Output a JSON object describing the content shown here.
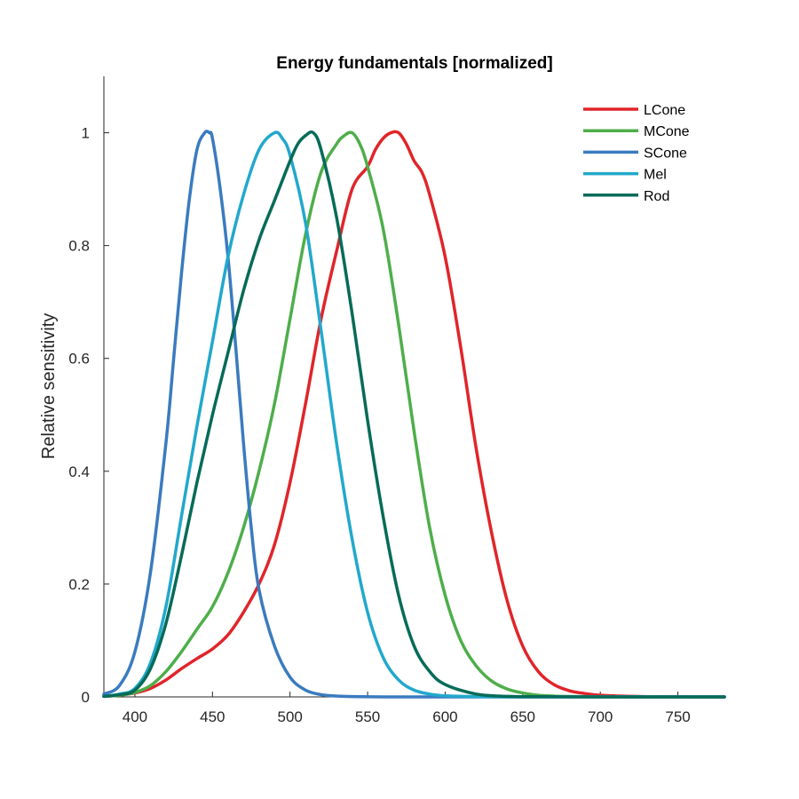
{
  "chart_data": {
    "type": "line",
    "title": "Energy fundamentals [normalized]",
    "xlabel": "",
    "ylabel": "Relative sensitivity",
    "xlim": [
      380,
      780
    ],
    "ylim": [
      0,
      1.1
    ],
    "xticks": [
      400,
      450,
      500,
      550,
      600,
      650,
      700,
      750
    ],
    "yticks": [
      0,
      0.2,
      0.4,
      0.6,
      0.8,
      1
    ],
    "ytick_labels": [
      "0",
      "0.2",
      "0.4",
      "0.6",
      "0.8",
      "1"
    ],
    "grid": false,
    "legend_position": "top-right",
    "series": [
      {
        "name": "LCone",
        "color": "#e0252a",
        "x": [
          380,
          390,
          400,
          410,
          420,
          430,
          440,
          450,
          460,
          470,
          480,
          490,
          500,
          510,
          520,
          530,
          540,
          550,
          555,
          560,
          565,
          570,
          575,
          580,
          585,
          590,
          600,
          610,
          620,
          630,
          640,
          650,
          660,
          670,
          680,
          690,
          700,
          720,
          740,
          760,
          780
        ],
        "values": [
          0.001,
          0.003,
          0.007,
          0.015,
          0.03,
          0.05,
          0.068,
          0.085,
          0.11,
          0.15,
          0.2,
          0.27,
          0.38,
          0.52,
          0.67,
          0.79,
          0.9,
          0.94,
          0.97,
          0.99,
          1.0,
          1.0,
          0.98,
          0.95,
          0.93,
          0.89,
          0.78,
          0.62,
          0.44,
          0.29,
          0.17,
          0.09,
          0.045,
          0.022,
          0.011,
          0.006,
          0.003,
          0.001,
          0.0003,
          0.0001,
          0.0
        ]
      },
      {
        "name": "MCone",
        "color": "#4eae4a",
        "x": [
          380,
          390,
          400,
          410,
          420,
          430,
          440,
          450,
          460,
          470,
          480,
          490,
          500,
          510,
          520,
          530,
          535,
          540,
          545,
          550,
          560,
          570,
          580,
          590,
          600,
          610,
          620,
          630,
          640,
          650,
          660,
          670,
          680,
          700,
          720,
          740,
          760,
          780
        ],
        "values": [
          0.001,
          0.003,
          0.008,
          0.02,
          0.045,
          0.08,
          0.12,
          0.16,
          0.22,
          0.3,
          0.4,
          0.52,
          0.67,
          0.82,
          0.93,
          0.98,
          0.995,
          1.0,
          0.98,
          0.94,
          0.83,
          0.66,
          0.47,
          0.3,
          0.18,
          0.1,
          0.055,
          0.028,
          0.014,
          0.007,
          0.003,
          0.0015,
          0.0007,
          0.0002,
          0.0001,
          0.0,
          0.0,
          0.0
        ]
      },
      {
        "name": "SCone",
        "color": "#3a7bbf",
        "x": [
          380,
          390,
          400,
          410,
          420,
          425,
          430,
          435,
          440,
          445,
          448,
          450,
          455,
          460,
          465,
          470,
          475,
          480,
          490,
          500,
          510,
          520,
          530,
          540,
          560,
          580,
          600,
          650,
          700,
          780
        ],
        "values": [
          0.005,
          0.02,
          0.08,
          0.22,
          0.45,
          0.6,
          0.75,
          0.88,
          0.97,
          1.0,
          1.0,
          0.99,
          0.9,
          0.78,
          0.62,
          0.45,
          0.3,
          0.19,
          0.09,
          0.035,
          0.012,
          0.004,
          0.0015,
          0.0006,
          0.0001,
          0.0,
          0.0,
          0.0,
          0.0,
          0.0
        ]
      },
      {
        "name": "Mel",
        "color": "#22a8cc",
        "x": [
          380,
          390,
          400,
          410,
          420,
          430,
          440,
          450,
          460,
          470,
          480,
          490,
          495,
          500,
          510,
          520,
          530,
          540,
          550,
          560,
          570,
          580,
          590,
          600,
          620,
          640,
          660,
          700,
          780
        ],
        "values": [
          0.001,
          0.005,
          0.015,
          0.06,
          0.16,
          0.32,
          0.48,
          0.63,
          0.78,
          0.89,
          0.97,
          1.0,
          0.99,
          0.96,
          0.84,
          0.65,
          0.45,
          0.28,
          0.15,
          0.07,
          0.03,
          0.012,
          0.005,
          0.002,
          0.0005,
          0.0001,
          0.0,
          0.0,
          0.0
        ]
      },
      {
        "name": "Rod",
        "color": "#066b58",
        "x": [
          380,
          390,
          400,
          410,
          420,
          430,
          440,
          450,
          460,
          470,
          480,
          490,
          500,
          505,
          510,
          515,
          520,
          530,
          540,
          550,
          560,
          570,
          580,
          590,
          600,
          620,
          640,
          660,
          700,
          780
        ],
        "values": [
          0.001,
          0.004,
          0.012,
          0.05,
          0.13,
          0.25,
          0.38,
          0.5,
          0.61,
          0.72,
          0.81,
          0.88,
          0.95,
          0.98,
          0.995,
          1.0,
          0.97,
          0.85,
          0.68,
          0.49,
          0.32,
          0.18,
          0.09,
          0.045,
          0.022,
          0.005,
          0.001,
          0.0003,
          0.0,
          0.0
        ]
      }
    ]
  }
}
